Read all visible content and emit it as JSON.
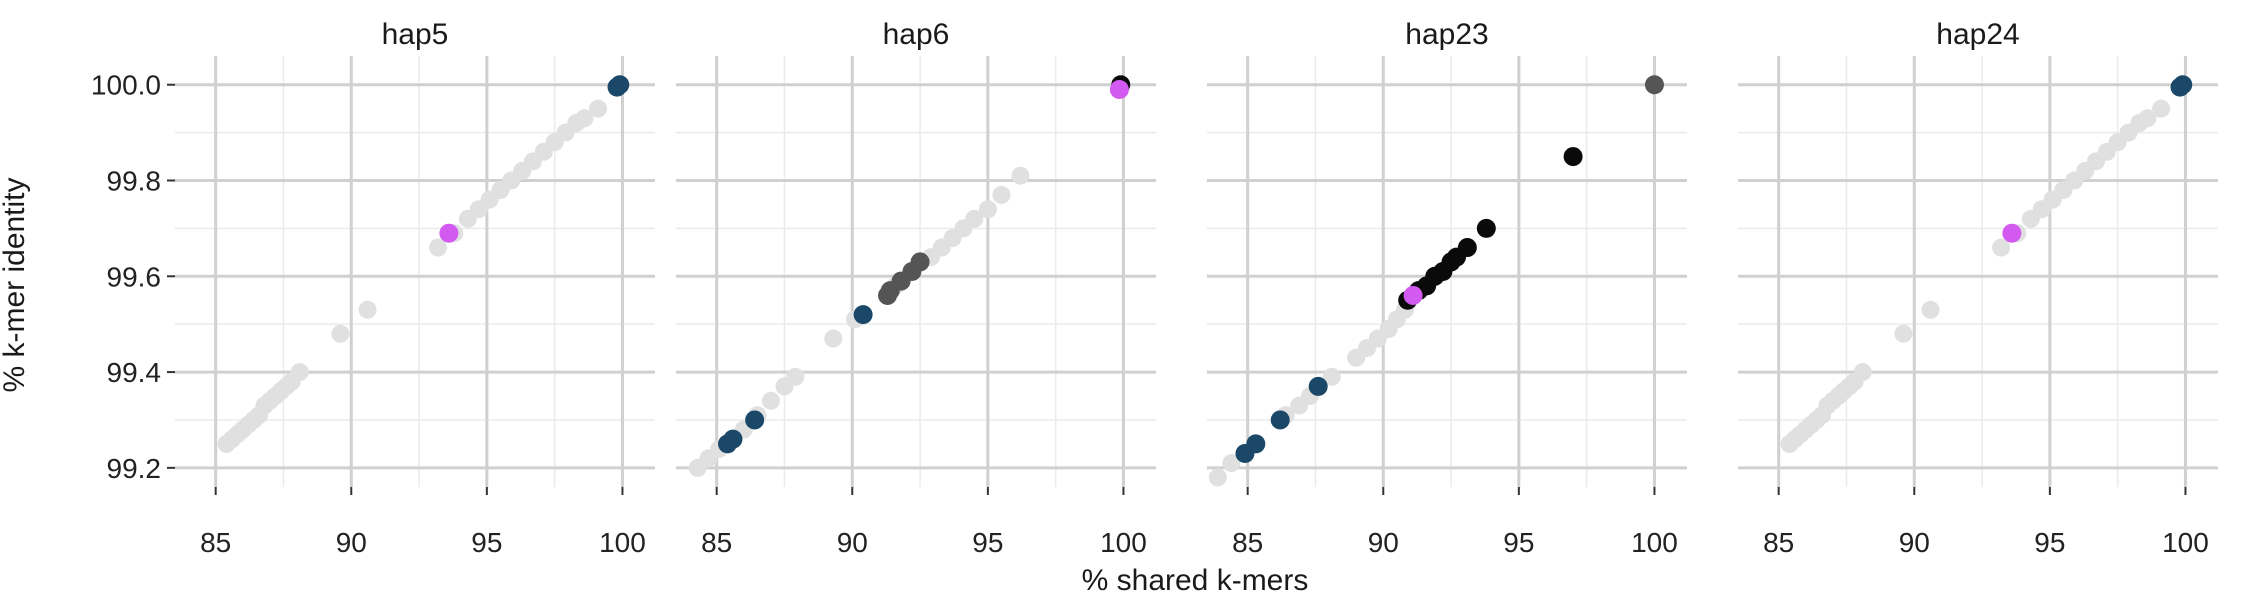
{
  "chart_data": {
    "type": "scatter",
    "layout": "facets",
    "xlabel": "% shared k-mers",
    "ylabel": "% k-mer identity",
    "xlim": [
      83.5,
      101.2
    ],
    "ylim": [
      99.16,
      100.06
    ],
    "xticks": [
      85,
      90,
      95,
      100
    ],
    "yticks": [
      99.2,
      99.4,
      99.6,
      99.8,
      100.0
    ],
    "ytick_labels": [
      "99.2",
      "99.4",
      "99.6",
      "99.8",
      "100.0"
    ],
    "grid": true,
    "colors": {
      "background": "#e0e0e0",
      "navy": "#1b4869",
      "magenta": "#d35af0",
      "black": "#0a0a0a",
      "darkgray": "#555555"
    },
    "panels": [
      {
        "title": "hap5",
        "background_points": [
          [
            85.4,
            99.25
          ],
          [
            85.6,
            99.26
          ],
          [
            85.8,
            99.27
          ],
          [
            86.0,
            99.28
          ],
          [
            86.2,
            99.29
          ],
          [
            86.4,
            99.3
          ],
          [
            86.6,
            99.31
          ],
          [
            86.8,
            99.33
          ],
          [
            87.0,
            99.34
          ],
          [
            87.2,
            99.35
          ],
          [
            87.4,
            99.36
          ],
          [
            87.6,
            99.37
          ],
          [
            87.8,
            99.38
          ],
          [
            88.1,
            99.4
          ],
          [
            89.6,
            99.48
          ],
          [
            90.6,
            99.53
          ],
          [
            93.2,
            99.66
          ],
          [
            93.8,
            99.69
          ],
          [
            94.3,
            99.72
          ],
          [
            94.7,
            99.74
          ],
          [
            95.1,
            99.76
          ],
          [
            95.5,
            99.78
          ],
          [
            95.9,
            99.8
          ],
          [
            96.3,
            99.82
          ],
          [
            96.7,
            99.84
          ],
          [
            97.1,
            99.86
          ],
          [
            97.5,
            99.88
          ],
          [
            97.9,
            99.9
          ],
          [
            98.3,
            99.92
          ],
          [
            98.6,
            99.93
          ],
          [
            99.1,
            99.95
          ]
        ],
        "points": [
          {
            "x": 93.6,
            "y": 99.69,
            "color": "magenta"
          },
          {
            "x": 99.8,
            "y": 99.995,
            "color": "navy"
          },
          {
            "x": 99.9,
            "y": 100.0,
            "color": "navy"
          }
        ]
      },
      {
        "title": "hap6",
        "background_points": [
          [
            84.3,
            99.2
          ],
          [
            84.7,
            99.22
          ],
          [
            85.1,
            99.24
          ],
          [
            86.0,
            99.28
          ],
          [
            86.5,
            99.31
          ],
          [
            87.0,
            99.34
          ],
          [
            87.5,
            99.37
          ],
          [
            87.9,
            99.39
          ],
          [
            89.3,
            99.47
          ],
          [
            90.1,
            99.51
          ],
          [
            91.6,
            99.58
          ],
          [
            92.9,
            99.64
          ],
          [
            93.3,
            99.66
          ],
          [
            93.7,
            99.68
          ],
          [
            94.1,
            99.7
          ],
          [
            94.5,
            99.72
          ],
          [
            95.0,
            99.74
          ],
          [
            95.5,
            99.77
          ],
          [
            96.2,
            99.81
          ]
        ],
        "points": [
          {
            "x": 85.4,
            "y": 99.25,
            "color": "navy"
          },
          {
            "x": 85.6,
            "y": 99.26,
            "color": "navy"
          },
          {
            "x": 86.4,
            "y": 99.3,
            "color": "navy"
          },
          {
            "x": 90.4,
            "y": 99.52,
            "color": "navy"
          },
          {
            "x": 91.3,
            "y": 99.56,
            "color": "darkgray"
          },
          {
            "x": 91.4,
            "y": 99.57,
            "color": "darkgray"
          },
          {
            "x": 91.8,
            "y": 99.59,
            "color": "darkgray"
          },
          {
            "x": 92.2,
            "y": 99.61,
            "color": "darkgray"
          },
          {
            "x": 92.5,
            "y": 99.63,
            "color": "darkgray"
          },
          {
            "x": 99.9,
            "y": 100.0,
            "color": "black"
          },
          {
            "x": 99.85,
            "y": 99.99,
            "color": "magenta"
          }
        ]
      },
      {
        "title": "hap23",
        "background_points": [
          [
            83.9,
            99.18
          ],
          [
            84.4,
            99.21
          ],
          [
            86.4,
            99.31
          ],
          [
            86.9,
            99.33
          ],
          [
            87.3,
            99.35
          ],
          [
            88.1,
            99.39
          ],
          [
            89.0,
            99.43
          ],
          [
            89.4,
            99.45
          ],
          [
            89.8,
            99.47
          ],
          [
            90.2,
            99.49
          ],
          [
            90.5,
            99.51
          ],
          [
            90.8,
            99.53
          ]
        ],
        "points": [
          {
            "x": 84.9,
            "y": 99.23,
            "color": "navy"
          },
          {
            "x": 85.3,
            "y": 99.25,
            "color": "navy"
          },
          {
            "x": 86.2,
            "y": 99.3,
            "color": "navy"
          },
          {
            "x": 87.6,
            "y": 99.37,
            "color": "navy"
          },
          {
            "x": 90.9,
            "y": 99.55,
            "color": "black"
          },
          {
            "x": 91.3,
            "y": 99.57,
            "color": "black"
          },
          {
            "x": 91.6,
            "y": 99.58,
            "color": "black"
          },
          {
            "x": 91.9,
            "y": 99.6,
            "color": "black"
          },
          {
            "x": 92.2,
            "y": 99.61,
            "color": "black"
          },
          {
            "x": 92.5,
            "y": 99.63,
            "color": "black"
          },
          {
            "x": 92.7,
            "y": 99.64,
            "color": "black"
          },
          {
            "x": 93.1,
            "y": 99.66,
            "color": "black"
          },
          {
            "x": 93.8,
            "y": 99.7,
            "color": "black"
          },
          {
            "x": 97.0,
            "y": 99.85,
            "color": "black"
          },
          {
            "x": 91.1,
            "y": 99.56,
            "color": "magenta"
          },
          {
            "x": 100.0,
            "y": 100.0,
            "color": "darkgray"
          }
        ]
      },
      {
        "title": "hap24",
        "background_points": [
          [
            85.4,
            99.25
          ],
          [
            85.6,
            99.26
          ],
          [
            85.8,
            99.27
          ],
          [
            86.0,
            99.28
          ],
          [
            86.2,
            99.29
          ],
          [
            86.4,
            99.3
          ],
          [
            86.6,
            99.31
          ],
          [
            86.8,
            99.33
          ],
          [
            87.0,
            99.34
          ],
          [
            87.2,
            99.35
          ],
          [
            87.4,
            99.36
          ],
          [
            87.6,
            99.37
          ],
          [
            87.8,
            99.38
          ],
          [
            88.1,
            99.4
          ],
          [
            89.6,
            99.48
          ],
          [
            90.6,
            99.53
          ],
          [
            93.2,
            99.66
          ],
          [
            93.8,
            99.69
          ],
          [
            94.3,
            99.72
          ],
          [
            94.7,
            99.74
          ],
          [
            95.1,
            99.76
          ],
          [
            95.5,
            99.78
          ],
          [
            95.9,
            99.8
          ],
          [
            96.3,
            99.82
          ],
          [
            96.7,
            99.84
          ],
          [
            97.1,
            99.86
          ],
          [
            97.5,
            99.88
          ],
          [
            97.9,
            99.9
          ],
          [
            98.3,
            99.92
          ],
          [
            98.6,
            99.93
          ],
          [
            99.1,
            99.95
          ]
        ],
        "points": [
          {
            "x": 93.6,
            "y": 99.69,
            "color": "magenta"
          },
          {
            "x": 99.8,
            "y": 99.995,
            "color": "navy"
          },
          {
            "x": 99.9,
            "y": 100.0,
            "color": "navy"
          }
        ]
      }
    ]
  }
}
